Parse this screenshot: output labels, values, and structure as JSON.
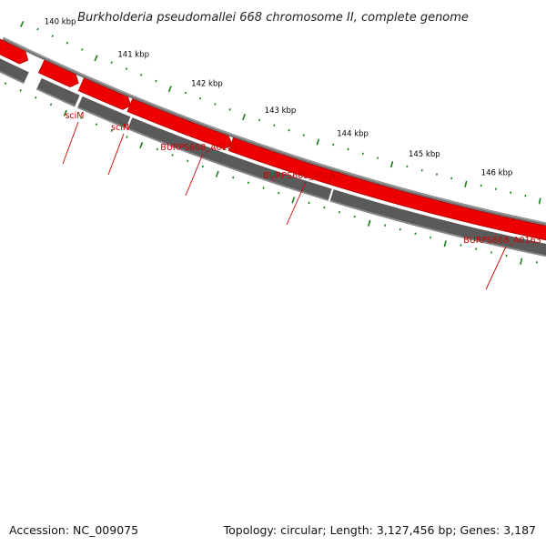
{
  "title": "Burkholderia pseudomallei 668 chromosome II, complete genome",
  "colors": {
    "background": "#ffffff",
    "backbone": "#737373",
    "backbone_highlight": "#a8a8a8",
    "feature_track": "#5a5a5a",
    "feature_track_top": "#8c8c8c",
    "cds": "#ee0000",
    "cds_dark": "#b40000",
    "gene_label": "#cc0000",
    "tick": "#1a7f1a",
    "tick_label": "#000000"
  },
  "genes": [
    {
      "label": "sciM"
    },
    {
      "label": "sciN"
    },
    {
      "label": "BURPS668_A0161"
    },
    {
      "label": "BURPS668_A0162"
    },
    {
      "label": "BURPS668_A0163"
    }
  ],
  "ruler": {
    "unit": "kbp",
    "major_ticks": [
      "140 kbp",
      "141 kbp",
      "142 kbp",
      "143 kbp",
      "144 kbp",
      "145 kbp",
      "146 kbp"
    ]
  },
  "footer": {
    "accession": "Accession: NC_009075",
    "summary": "Topology: circular; Length: 3,127,456 bp; Genes: 3,187"
  }
}
